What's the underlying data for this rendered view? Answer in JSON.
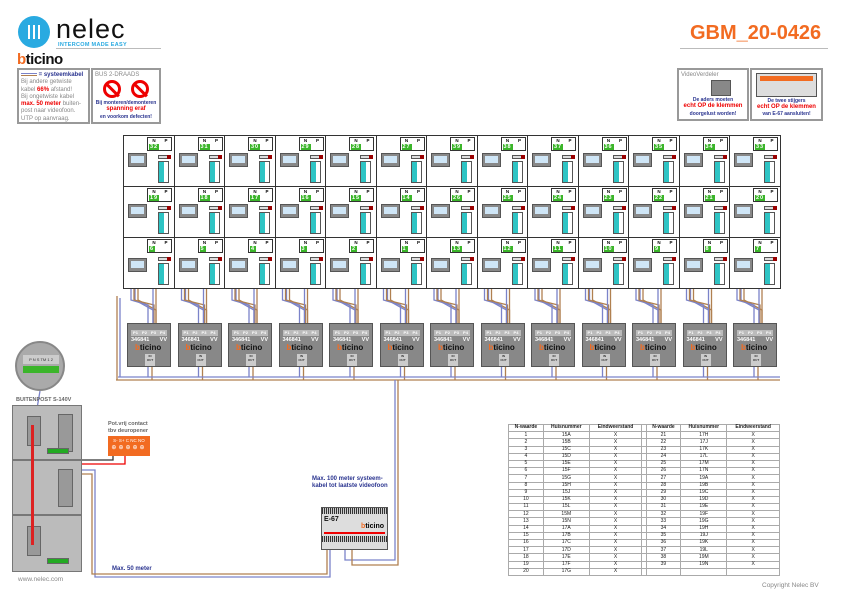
{
  "header": {
    "brand": "nelec",
    "tagline": "INTERCOM MADE EASY",
    "brand2_b": "b",
    "brand2_rest": "ticino",
    "doc_title": "GBM_20-0426"
  },
  "note_cable": {
    "legend": "= systeemkabel",
    "l1": "Bij andere getwiste",
    "l2a": "kabel ",
    "l2b": "66%",
    "l2c": " afstand!",
    "l3": "Bij ongetwiste kabel",
    "l4a": "max. 50 meter",
    "l4b": " buiten-",
    "l5": "post naar videofoon.",
    "l6": "UTP op aanvraag."
  },
  "note_bus": {
    "title": "BUS 2-DRAADS",
    "l1": "Bij monteren/demonteren",
    "l2": "spanning eraf",
    "l3": "en voorkom defecten!"
  },
  "note_video": {
    "title": "VideoVerdeler",
    "l1": "De aders moeten",
    "l2": "echt OP de klemmen",
    "l3": "doorgelust worden!"
  },
  "note_e67": {
    "l1": "De twee stijgers",
    "l2": "echt OP de klemmen",
    "l3": "van E-67 aansluiten!"
  },
  "grid": {
    "n_label": "N",
    "p_label": "P",
    "rows": [
      [
        "32",
        "31",
        "30",
        "29",
        "28",
        "27",
        "39",
        "38",
        "37",
        "36",
        "35",
        "34",
        "33"
      ],
      [
        "19",
        "18",
        "17",
        "16",
        "15",
        "14",
        "26",
        "25",
        "24",
        "23",
        "22",
        "21",
        "20"
      ],
      [
        "6",
        "5",
        "4",
        "3",
        "2",
        "1",
        "13",
        "12",
        "11",
        "10",
        "9",
        "8",
        "7"
      ]
    ]
  },
  "divider": {
    "code": "346841",
    "type": "VV",
    "ports": [
      "P1",
      "P2",
      "P3",
      "P4"
    ],
    "io": "IN OUT",
    "brand_b": "b",
    "brand_rest": "ticino"
  },
  "outdoor": {
    "title": "BUITENPOST S-140V",
    "zoom_terms": "P N S TM 1 2"
  },
  "contact": {
    "l1": "Pot.vrij contact",
    "l2": "tbv deuropener",
    "terms": "S- S+ C NC NO"
  },
  "labels": {
    "max100_1": "Max. 100 meter systeem-",
    "max100_2": "kabel tot laatste videofoon",
    "max50": "Max. 50 meter",
    "e67": "E-67",
    "website": "www.nelec.com",
    "copyright": "Copyright Nelec BV"
  },
  "table": {
    "headers": [
      "N-waarde",
      "Huisnummer",
      "Eindweerstand"
    ],
    "left": [
      [
        "1",
        "15A",
        "X"
      ],
      [
        "2",
        "15B",
        "X"
      ],
      [
        "3",
        "15C",
        "X"
      ],
      [
        "4",
        "15D",
        "X"
      ],
      [
        "5",
        "15E",
        "X"
      ],
      [
        "6",
        "15F",
        "X"
      ],
      [
        "7",
        "15G",
        "X"
      ],
      [
        "8",
        "15H",
        "X"
      ],
      [
        "9",
        "15J",
        "X"
      ],
      [
        "10",
        "15K",
        "X"
      ],
      [
        "11",
        "15L",
        "X"
      ],
      [
        "12",
        "15M",
        "X"
      ],
      [
        "13",
        "15N",
        "X"
      ],
      [
        "14",
        "17A",
        "X"
      ],
      [
        "15",
        "17B",
        "X"
      ],
      [
        "16",
        "17C",
        "X"
      ],
      [
        "17",
        "17D",
        "X"
      ],
      [
        "18",
        "17E",
        "X"
      ],
      [
        "19",
        "17F",
        "X"
      ],
      [
        "20",
        "17G",
        "X"
      ]
    ],
    "right": [
      [
        "21",
        "17H",
        "X"
      ],
      [
        "22",
        "17J",
        "X"
      ],
      [
        "23",
        "17K",
        "X"
      ],
      [
        "24",
        "17L",
        "X"
      ],
      [
        "25",
        "17M",
        "X"
      ],
      [
        "26",
        "17N",
        "X"
      ],
      [
        "27",
        "19A",
        "X"
      ],
      [
        "28",
        "19B",
        "X"
      ],
      [
        "29",
        "19C",
        "X"
      ],
      [
        "30",
        "19D",
        "X"
      ],
      [
        "31",
        "19E",
        "X"
      ],
      [
        "32",
        "19F",
        "X"
      ],
      [
        "33",
        "19G",
        "X"
      ],
      [
        "34",
        "19H",
        "X"
      ],
      [
        "35",
        "19J",
        "X"
      ],
      [
        "36",
        "19K",
        "X"
      ],
      [
        "37",
        "19L",
        "X"
      ],
      [
        "38",
        "19M",
        "X"
      ],
      [
        "39",
        "19N",
        "X"
      ]
    ]
  },
  "colors": {
    "accent": "#f26b21",
    "nelec_blue": "#29aae1",
    "wire_blue": "#7b83c9",
    "wire_brown": "#b08050",
    "green": "#3bb52a"
  }
}
